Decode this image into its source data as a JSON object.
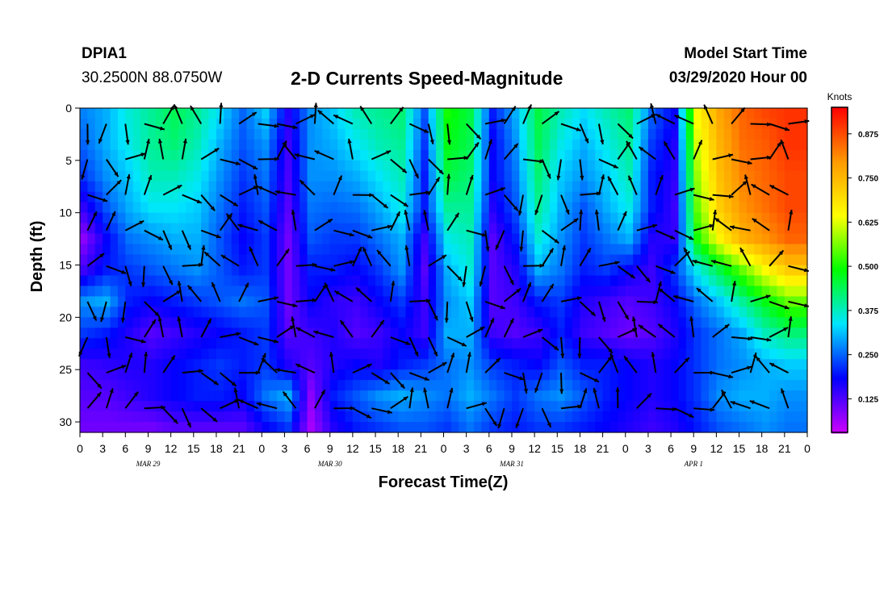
{
  "header": {
    "station": "DPIA1",
    "coords": "30.2500N 88.0750W",
    "title": "2-D Currents Speed-Magnitude",
    "model_label": "Model Start Time",
    "model_time": "03/29/2020 Hour 00"
  },
  "chart_data": {
    "type": "heatmap",
    "title": "2-D Currents Speed-Magnitude",
    "xlabel": "Forecast Time(Z)",
    "ylabel": "Depth (ft)",
    "x_tick_labels": [
      "0",
      "3",
      "6",
      "9",
      "12",
      "15",
      "18",
      "21",
      "0",
      "3",
      "6",
      "9",
      "12",
      "15",
      "18",
      "21",
      "0",
      "3",
      "6",
      "9",
      "12",
      "15",
      "18",
      "21",
      "0",
      "3",
      "6",
      "9",
      "12",
      "15",
      "18",
      "21",
      "0"
    ],
    "date_labels": [
      {
        "label": "MAR 29",
        "hour": 9
      },
      {
        "label": "MAR 30",
        "hour": 33
      },
      {
        "label": "MAR 31",
        "hour": 57
      },
      {
        "label": "APR 1",
        "hour": 81
      }
    ],
    "x_range_hours": [
      0,
      96
    ],
    "y_ticks": [
      0,
      5,
      10,
      15,
      20,
      25,
      30
    ],
    "ylim": [
      0,
      31
    ],
    "y_inverted": true,
    "colorbar": {
      "title": "Knots",
      "ticks": [
        "0.875",
        "0.750",
        "0.625",
        "0.500",
        "0.375",
        "0.250",
        "0.125"
      ],
      "tick_values": [
        0.875,
        0.75,
        0.625,
        0.5,
        0.375,
        0.25,
        0.125
      ],
      "range": [
        0.03,
        0.95
      ],
      "colors": [
        "#cc00ff",
        "#0000ff",
        "#00e6ff",
        "#00ff00",
        "#ffff00",
        "#ff9900",
        "#ff0000"
      ]
    },
    "speed_knots_by_depth_band": [
      {
        "depth_ft": 0,
        "values": [
          0.27,
          0.3,
          0.36,
          0.4,
          0.44,
          0.4,
          0.33,
          0.25,
          0.32,
          0.16,
          0.28,
          0.32,
          0.38,
          0.4,
          0.42,
          0.24,
          0.5,
          0.45,
          0.2,
          0.3,
          0.45,
          0.38,
          0.33,
          0.38,
          0.42,
          0.25,
          0.18,
          0.65,
          0.78,
          0.85,
          0.88,
          0.9
        ]
      },
      {
        "depth_ft": 3,
        "values": [
          0.25,
          0.3,
          0.35,
          0.4,
          0.42,
          0.38,
          0.3,
          0.24,
          0.28,
          0.14,
          0.28,
          0.3,
          0.34,
          0.38,
          0.4,
          0.22,
          0.48,
          0.44,
          0.18,
          0.28,
          0.44,
          0.35,
          0.3,
          0.35,
          0.4,
          0.22,
          0.16,
          0.62,
          0.76,
          0.84,
          0.86,
          0.9
        ]
      },
      {
        "depth_ft": 6,
        "values": [
          0.22,
          0.28,
          0.32,
          0.38,
          0.38,
          0.35,
          0.28,
          0.22,
          0.26,
          0.13,
          0.28,
          0.28,
          0.3,
          0.34,
          0.38,
          0.2,
          0.45,
          0.42,
          0.18,
          0.26,
          0.42,
          0.32,
          0.28,
          0.32,
          0.38,
          0.2,
          0.15,
          0.58,
          0.74,
          0.82,
          0.85,
          0.88
        ]
      },
      {
        "depth_ft": 9,
        "values": [
          0.15,
          0.24,
          0.3,
          0.34,
          0.34,
          0.32,
          0.26,
          0.2,
          0.24,
          0.12,
          0.26,
          0.25,
          0.26,
          0.3,
          0.35,
          0.2,
          0.4,
          0.4,
          0.16,
          0.24,
          0.4,
          0.3,
          0.24,
          0.3,
          0.35,
          0.2,
          0.14,
          0.55,
          0.72,
          0.8,
          0.84,
          0.88
        ]
      },
      {
        "depth_ft": 12,
        "values": [
          0.08,
          0.18,
          0.26,
          0.28,
          0.3,
          0.3,
          0.24,
          0.18,
          0.22,
          0.1,
          0.24,
          0.22,
          0.22,
          0.26,
          0.3,
          0.14,
          0.35,
          0.38,
          0.12,
          0.2,
          0.36,
          0.28,
          0.22,
          0.26,
          0.3,
          0.16,
          0.15,
          0.5,
          0.66,
          0.76,
          0.8,
          0.85
        ]
      },
      {
        "depth_ft": 15,
        "values": [
          0.14,
          0.2,
          0.22,
          0.24,
          0.26,
          0.28,
          0.24,
          0.2,
          0.22,
          0.1,
          0.2,
          0.2,
          0.18,
          0.22,
          0.28,
          0.12,
          0.3,
          0.36,
          0.12,
          0.16,
          0.3,
          0.26,
          0.2,
          0.22,
          0.18,
          0.14,
          0.22,
          0.35,
          0.45,
          0.55,
          0.65,
          0.72
        ]
      },
      {
        "depth_ft": 18,
        "values": [
          0.28,
          0.3,
          0.2,
          0.18,
          0.2,
          0.22,
          0.24,
          0.26,
          0.24,
          0.1,
          0.18,
          0.15,
          0.14,
          0.18,
          0.22,
          0.14,
          0.28,
          0.32,
          0.12,
          0.14,
          0.2,
          0.22,
          0.16,
          0.14,
          0.12,
          0.14,
          0.18,
          0.26,
          0.32,
          0.4,
          0.48,
          0.55
        ]
      },
      {
        "depth_ft": 21,
        "values": [
          0.22,
          0.2,
          0.16,
          0.12,
          0.14,
          0.16,
          0.18,
          0.2,
          0.22,
          0.12,
          0.14,
          0.16,
          0.12,
          0.14,
          0.18,
          0.14,
          0.3,
          0.3,
          0.14,
          0.12,
          0.14,
          0.2,
          0.14,
          0.12,
          0.1,
          0.12,
          0.16,
          0.22,
          0.26,
          0.3,
          0.38,
          0.42
        ]
      },
      {
        "depth_ft": 24,
        "values": [
          0.14,
          0.15,
          0.16,
          0.16,
          0.18,
          0.2,
          0.22,
          0.2,
          0.22,
          0.16,
          0.12,
          0.16,
          0.18,
          0.16,
          0.2,
          0.22,
          0.26,
          0.28,
          0.22,
          0.2,
          0.18,
          0.24,
          0.2,
          0.2,
          0.18,
          0.16,
          0.18,
          0.22,
          0.26,
          0.28,
          0.3,
          0.32
        ]
      },
      {
        "depth_ft": 27,
        "values": [
          0.12,
          0.12,
          0.14,
          0.16,
          0.18,
          0.2,
          0.2,
          0.18,
          0.26,
          0.3,
          0.08,
          0.2,
          0.24,
          0.28,
          0.3,
          0.28,
          0.26,
          0.3,
          0.26,
          0.22,
          0.26,
          0.28,
          0.24,
          0.2,
          0.18,
          0.16,
          0.18,
          0.22,
          0.28,
          0.3,
          0.3,
          0.28
        ]
      },
      {
        "depth_ft": 30,
        "values": [
          0.1,
          0.1,
          0.1,
          0.1,
          0.12,
          0.12,
          0.12,
          0.12,
          0.18,
          0.22,
          0.06,
          0.16,
          0.2,
          0.22,
          0.24,
          0.24,
          0.22,
          0.26,
          0.22,
          0.2,
          0.22,
          0.22,
          0.2,
          0.18,
          0.16,
          0.14,
          0.16,
          0.2,
          0.24,
          0.26,
          0.28,
          0.26
        ]
      }
    ]
  }
}
